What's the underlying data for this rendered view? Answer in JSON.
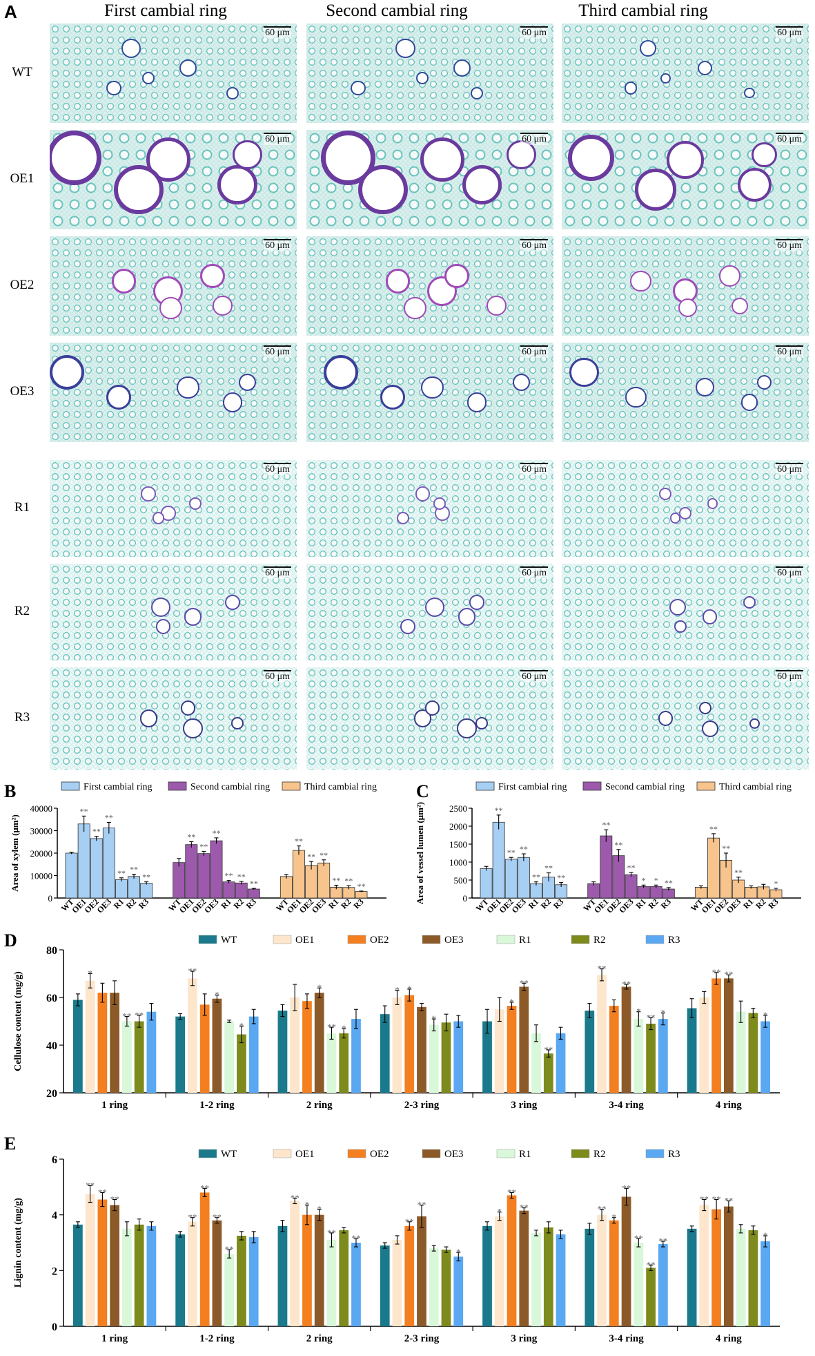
{
  "panel_a": {
    "letter": "A",
    "columns": [
      "First cambial ring",
      "Second cambial ring",
      "Third cambial ring"
    ],
    "rows": [
      "WT",
      "OE1",
      "OE2",
      "OE3",
      "R1",
      "R2",
      "R3"
    ],
    "scale_bar": "60 μm",
    "vessels": {
      "WT": [
        [
          0.38,
          0.25,
          0.08
        ],
        [
          0.58,
          0.45,
          0.07
        ],
        [
          0.25,
          0.65,
          0.06
        ],
        [
          0.7,
          0.7,
          0.05
        ],
        [
          0.45,
          0.55,
          0.05
        ]
      ],
      "OE1": [
        [
          0.15,
          0.28,
          0.22
        ],
        [
          0.5,
          0.3,
          0.18
        ],
        [
          0.35,
          0.6,
          0.2
        ],
        [
          0.72,
          0.55,
          0.16
        ],
        [
          0.85,
          0.25,
          0.12
        ]
      ],
      "OE2": [
        [
          0.35,
          0.45,
          0.1
        ],
        [
          0.5,
          0.55,
          0.12
        ],
        [
          0.65,
          0.4,
          0.1
        ],
        [
          0.45,
          0.72,
          0.09
        ],
        [
          0.75,
          0.7,
          0.08
        ]
      ],
      "OE3": [
        [
          0.12,
          0.3,
          0.14
        ],
        [
          0.3,
          0.55,
          0.1
        ],
        [
          0.55,
          0.45,
          0.09
        ],
        [
          0.7,
          0.6,
          0.08
        ],
        [
          0.85,
          0.4,
          0.07
        ]
      ],
      "R1": [
        [
          0.45,
          0.35,
          0.06
        ],
        [
          0.5,
          0.55,
          0.06
        ],
        [
          0.58,
          0.45,
          0.05
        ],
        [
          0.4,
          0.6,
          0.05
        ]
      ],
      "R2": [
        [
          0.5,
          0.45,
          0.08
        ],
        [
          0.6,
          0.55,
          0.07
        ],
        [
          0.45,
          0.65,
          0.06
        ],
        [
          0.7,
          0.4,
          0.06
        ]
      ],
      "R3": [
        [
          0.45,
          0.5,
          0.07
        ],
        [
          0.6,
          0.6,
          0.08
        ],
        [
          0.55,
          0.4,
          0.06
        ],
        [
          0.72,
          0.55,
          0.05
        ]
      ]
    }
  },
  "chart_data": [
    {
      "panel": "B",
      "type": "bar",
      "legend": [
        "First cambial ring",
        "Second cambial ring",
        "Third cambial ring"
      ],
      "colors": [
        "#a7cff3",
        "#9d5aac",
        "#f7c48d"
      ],
      "groups": [
        "First cambial ring",
        "Second cambial ring",
        "Third cambial ring"
      ],
      "categories": [
        "WT",
        "OE1",
        "OE2",
        "OE3",
        "R1",
        "R2",
        "R3"
      ],
      "values": [
        [
          20000,
          33000,
          26500,
          31200,
          8200,
          9600,
          6600
        ],
        [
          15800,
          23800,
          19800,
          25500,
          7200,
          6700,
          4000
        ],
        [
          9600,
          21200,
          14500,
          15600,
          4800,
          4700,
          2900
        ]
      ],
      "errors": [
        [
          400,
          3500,
          1000,
          2500,
          800,
          1000,
          600
        ],
        [
          1800,
          1300,
          1000,
          1300,
          600,
          700,
          300
        ],
        [
          900,
          2000,
          1800,
          1400,
          900,
          800,
          200
        ]
      ],
      "significance": [
        [
          "",
          "**",
          "**",
          "**",
          "**",
          "**",
          "**"
        ],
        [
          "",
          "**",
          "**",
          "**",
          "**",
          "**",
          "**"
        ],
        [
          "",
          "**",
          "**",
          "**",
          "**",
          "**",
          "**"
        ]
      ],
      "ylabel": "Area of xylem (μm²)",
      "ylim": [
        0,
        40000
      ],
      "yticks": [
        "0",
        "10000",
        "20000",
        "30000",
        "40000"
      ]
    },
    {
      "panel": "C",
      "type": "bar",
      "legend": [
        "First cambial ring",
        "Second cambial ring",
        "Third cambial ring"
      ],
      "colors": [
        "#a7cff3",
        "#9d5aac",
        "#f7c48d"
      ],
      "groups": [
        "First cambial ring",
        "Second cambial ring",
        "Third cambial ring"
      ],
      "categories": [
        "WT",
        "OE1",
        "OE2",
        "OE3",
        "R1",
        "R2",
        "R3"
      ],
      "values": [
        [
          820,
          2110,
          1080,
          1130,
          400,
          580,
          370
        ],
        [
          400,
          1730,
          1180,
          650,
          320,
          320,
          250
        ],
        [
          300,
          1670,
          1050,
          500,
          300,
          310,
          230
        ]
      ],
      "errors": [
        [
          60,
          200,
          50,
          100,
          50,
          120,
          60
        ],
        [
          50,
          170,
          170,
          60,
          40,
          40,
          40
        ],
        [
          40,
          120,
          200,
          80,
          40,
          70,
          40
        ]
      ],
      "significance": [
        [
          "",
          "**",
          "**",
          "**",
          "**",
          "**",
          "**"
        ],
        [
          "",
          "**",
          "**",
          "**",
          "*",
          "*",
          "**"
        ],
        [
          "",
          "**",
          "**",
          "**",
          "",
          "",
          "*"
        ]
      ],
      "ylabel": "Area of vessel lumen (μm²)",
      "ylim": [
        0,
        2500
      ],
      "yticks": [
        "0",
        "500",
        "1000",
        "1500",
        "2000",
        "2500"
      ]
    },
    {
      "panel": "D",
      "type": "bar",
      "legend": [
        "WT",
        "OE1",
        "OE2",
        "OE3",
        "R1",
        "R2",
        "R3"
      ],
      "colors": [
        "#1a7a8c",
        "#fde6cc",
        "#f47f20",
        "#8c5a28",
        "#d9f7d9",
        "#7d8a1c",
        "#5aa8f2"
      ],
      "categories": [
        "1 ring",
        "1-2 ring",
        "2 ring",
        "2-3 ring",
        "3 ring",
        "3-4 ring",
        "4 ring"
      ],
      "values": [
        [
          59,
          67,
          62,
          62,
          50,
          50,
          54
        ],
        [
          52,
          68,
          57,
          59.5,
          50,
          44.5,
          52
        ],
        [
          54.5,
          60,
          58.5,
          62,
          45,
          45,
          51
        ],
        [
          53,
          60,
          61,
          56,
          48.5,
          49.5,
          50
        ],
        [
          50,
          55,
          56.5,
          64.5,
          45,
          36.5,
          45
        ],
        [
          54.5,
          69.5,
          56.5,
          64.5,
          51,
          49,
          51
        ],
        [
          55.5,
          60,
          68,
          68,
          54,
          53.5,
          50
        ]
      ],
      "errors": [
        [
          2.5,
          3,
          4,
          5,
          2,
          2.5,
          3.5
        ],
        [
          1.2,
          3,
          4.5,
          1.5,
          0.5,
          3.5,
          3
        ],
        [
          2.5,
          5.5,
          3,
          2,
          2.5,
          2,
          4
        ],
        [
          3.5,
          3,
          2.5,
          1.5,
          2.5,
          3.5,
          2.5
        ],
        [
          5,
          5,
          1.5,
          1.5,
          3.5,
          1.5,
          2.5
        ],
        [
          3,
          2.5,
          2.5,
          1,
          3,
          2.5,
          2.5
        ],
        [
          4,
          2.5,
          2.5,
          1.5,
          4.5,
          2,
          2.5
        ]
      ],
      "significance": [
        [
          "",
          "*",
          "",
          "",
          "**",
          "**",
          ""
        ],
        [
          "",
          "**",
          "",
          "*",
          "",
          "*",
          ""
        ],
        [
          "",
          "",
          "",
          "*",
          "**",
          "*",
          ""
        ],
        [
          "",
          "*",
          "*",
          "",
          "*",
          "",
          ""
        ],
        [
          "",
          "",
          "*",
          "**",
          "",
          "**",
          ""
        ],
        [
          "",
          "**",
          "",
          "**",
          "*",
          "**",
          "*"
        ],
        [
          "",
          "",
          "**",
          "**",
          "",
          "",
          "*"
        ]
      ],
      "ylabel": "Cellulose content (mg/g)",
      "ylim": [
        20,
        80
      ],
      "yticks": [
        "20",
        "40",
        "60",
        "80"
      ]
    },
    {
      "panel": "E",
      "type": "bar",
      "legend": [
        "WT",
        "OE1",
        "OE2",
        "OE3",
        "R1",
        "R2",
        "R3"
      ],
      "colors": [
        "#1a7a8c",
        "#fde6cc",
        "#f47f20",
        "#8c5a28",
        "#d9f7d9",
        "#7d8a1c",
        "#5aa8f2"
      ],
      "categories": [
        "1 ring",
        "1-2 ring",
        "2 ring",
        "2-3 ring",
        "3 ring",
        "3-4 ring",
        "4 ring"
      ],
      "values": [
        [
          3.65,
          4.75,
          4.55,
          4.35,
          3.5,
          3.65,
          3.6
        ],
        [
          3.3,
          3.75,
          4.8,
          3.8,
          2.6,
          3.25,
          3.2
        ],
        [
          3.6,
          4.5,
          4.0,
          4.0,
          3.1,
          3.45,
          3.0
        ],
        [
          2.9,
          3.1,
          3.6,
          3.95,
          2.8,
          2.75,
          2.5
        ],
        [
          3.6,
          3.95,
          4.7,
          4.15,
          3.35,
          3.55,
          3.3
        ],
        [
          3.5,
          4.0,
          3.8,
          4.65,
          3.0,
          2.1,
          2.95
        ],
        [
          3.5,
          4.35,
          4.2,
          4.3,
          3.5,
          3.45,
          3.05
        ]
      ],
      "errors": [
        [
          0.1,
          0.3,
          0.25,
          0.2,
          0.25,
          0.2,
          0.15
        ],
        [
          0.1,
          0.15,
          0.15,
          0.1,
          0.15,
          0.15,
          0.2
        ],
        [
          0.2,
          0.1,
          0.35,
          0.2,
          0.25,
          0.1,
          0.15
        ],
        [
          0.1,
          0.15,
          0.15,
          0.4,
          0.1,
          0.1,
          0.15
        ],
        [
          0.15,
          0.15,
          0.1,
          0.1,
          0.1,
          0.2,
          0.15
        ],
        [
          0.2,
          0.2,
          0.1,
          0.3,
          0.15,
          0.1,
          0.1
        ],
        [
          0.1,
          0.2,
          0.35,
          0.2,
          0.15,
          0.15,
          0.2
        ]
      ],
      "significance": [
        [
          "",
          "**",
          "**",
          "**",
          "",
          "",
          ""
        ],
        [
          "",
          "**",
          "**",
          "**",
          "**",
          "",
          ""
        ],
        [
          "",
          "**",
          "*",
          "*",
          "**",
          "",
          "**"
        ],
        [
          "",
          "",
          "**",
          "**",
          "",
          "",
          "*"
        ],
        [
          "",
          "*",
          "**",
          "**",
          "",
          "",
          ""
        ],
        [
          "",
          "**",
          "*",
          "**",
          "**",
          "**",
          "**"
        ],
        [
          "",
          "**",
          "**",
          "**",
          "",
          "",
          "*"
        ]
      ],
      "ylabel": "Lignin content (mg/g)",
      "ylim": [
        0,
        6
      ],
      "yticks": [
        "0",
        "2",
        "4",
        "6"
      ]
    }
  ]
}
